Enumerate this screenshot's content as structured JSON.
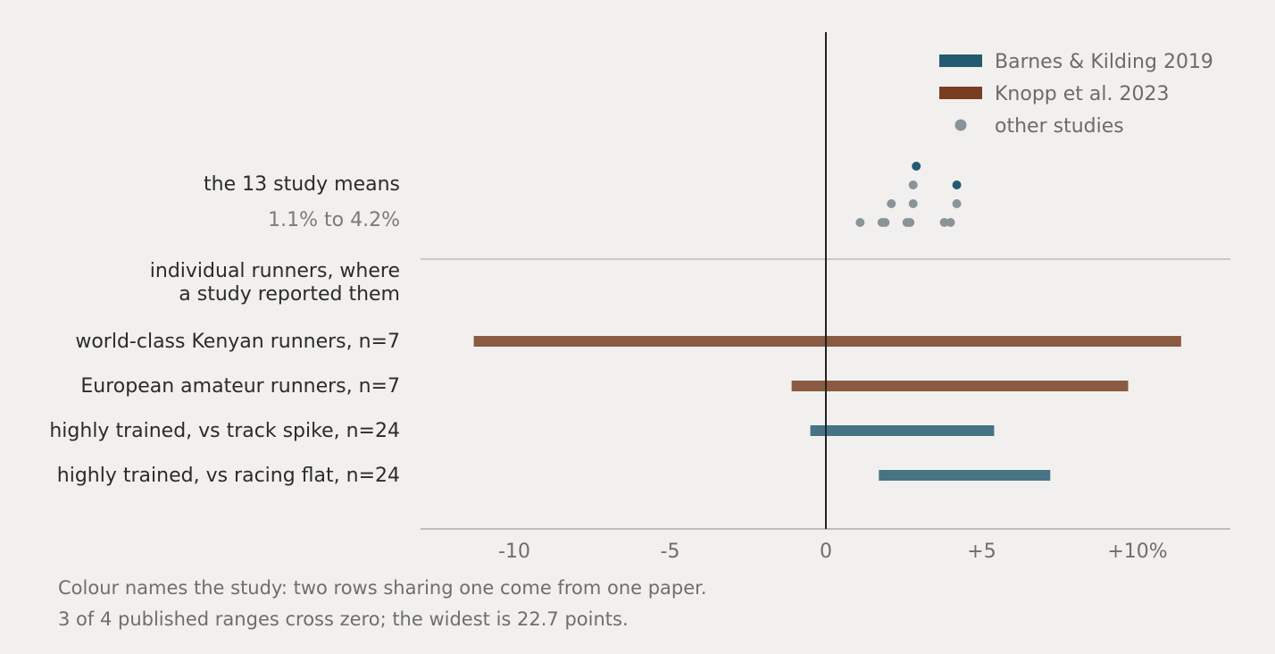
{
  "chart_data": {
    "type": "range",
    "xlim": [
      -13,
      13
    ],
    "xticks": [
      {
        "value": -10,
        "label": "-10"
      },
      {
        "value": -5,
        "label": "-5"
      },
      {
        "value": 0,
        "label": "0"
      },
      {
        "value": 5,
        "label": "+5"
      },
      {
        "value": 10,
        "label": "+10%"
      }
    ],
    "legend": {
      "placement": "top-right",
      "entries": [
        {
          "label": "Barnes & Kilding 2019",
          "mark": "bar",
          "color": "#245a70"
        },
        {
          "label": "Knopp et al. 2023",
          "mark": "bar",
          "color": "#7a3d22"
        },
        {
          "label": "other studies",
          "mark": "dot",
          "color": "#8a9398"
        }
      ]
    },
    "study_means": {
      "label": "the 13 study means",
      "range_label": "1.1% to 4.2%",
      "points": [
        {
          "x": 2.9,
          "level": 3,
          "study": "Barnes & Kilding 2019"
        },
        {
          "x": 2.8,
          "level": 2,
          "study": "other studies"
        },
        {
          "x": 4.2,
          "level": 2,
          "study": "Barnes & Kilding 2019"
        },
        {
          "x": 2.1,
          "level": 1,
          "study": "other studies"
        },
        {
          "x": 2.8,
          "level": 1,
          "study": "other studies"
        },
        {
          "x": 4.2,
          "level": 1,
          "study": "other studies"
        },
        {
          "x": 1.1,
          "level": 0,
          "study": "other studies"
        },
        {
          "x": 1.8,
          "level": 0,
          "study": "other studies"
        },
        {
          "x": 1.9,
          "level": 0,
          "study": "other studies"
        },
        {
          "x": 2.6,
          "level": 0,
          "study": "other studies"
        },
        {
          "x": 2.7,
          "level": 0,
          "study": "other studies"
        },
        {
          "x": 3.8,
          "level": 0,
          "study": "other studies"
        },
        {
          "x": 4.0,
          "level": 0,
          "study": "other studies"
        }
      ]
    },
    "section_heading": [
      "individual runners, where",
      "a study reported them"
    ],
    "ranges": [
      {
        "label": "world-class Kenyan runners, n=7",
        "low": -11.3,
        "high": 11.4,
        "study": "Knopp et al. 2023",
        "color": "#8a5a42"
      },
      {
        "label": "European amateur runners, n=7",
        "low": -1.1,
        "high": 9.7,
        "study": "Knopp et al. 2023",
        "color": "#8a5a42"
      },
      {
        "label": "highly trained, vs track spike, n=24",
        "low": -0.5,
        "high": 5.4,
        "study": "Barnes & Kilding 2019",
        "color": "#467484"
      },
      {
        "label": "highly trained, vs racing flat, n=24",
        "low": 1.7,
        "high": 7.2,
        "study": "Barnes & Kilding 2019",
        "color": "#467484"
      }
    ]
  },
  "notes": [
    "Colour names the study: two rows sharing one come from one paper.",
    "3 of 4 published ranges cross zero; the widest is 22.7 points."
  ]
}
